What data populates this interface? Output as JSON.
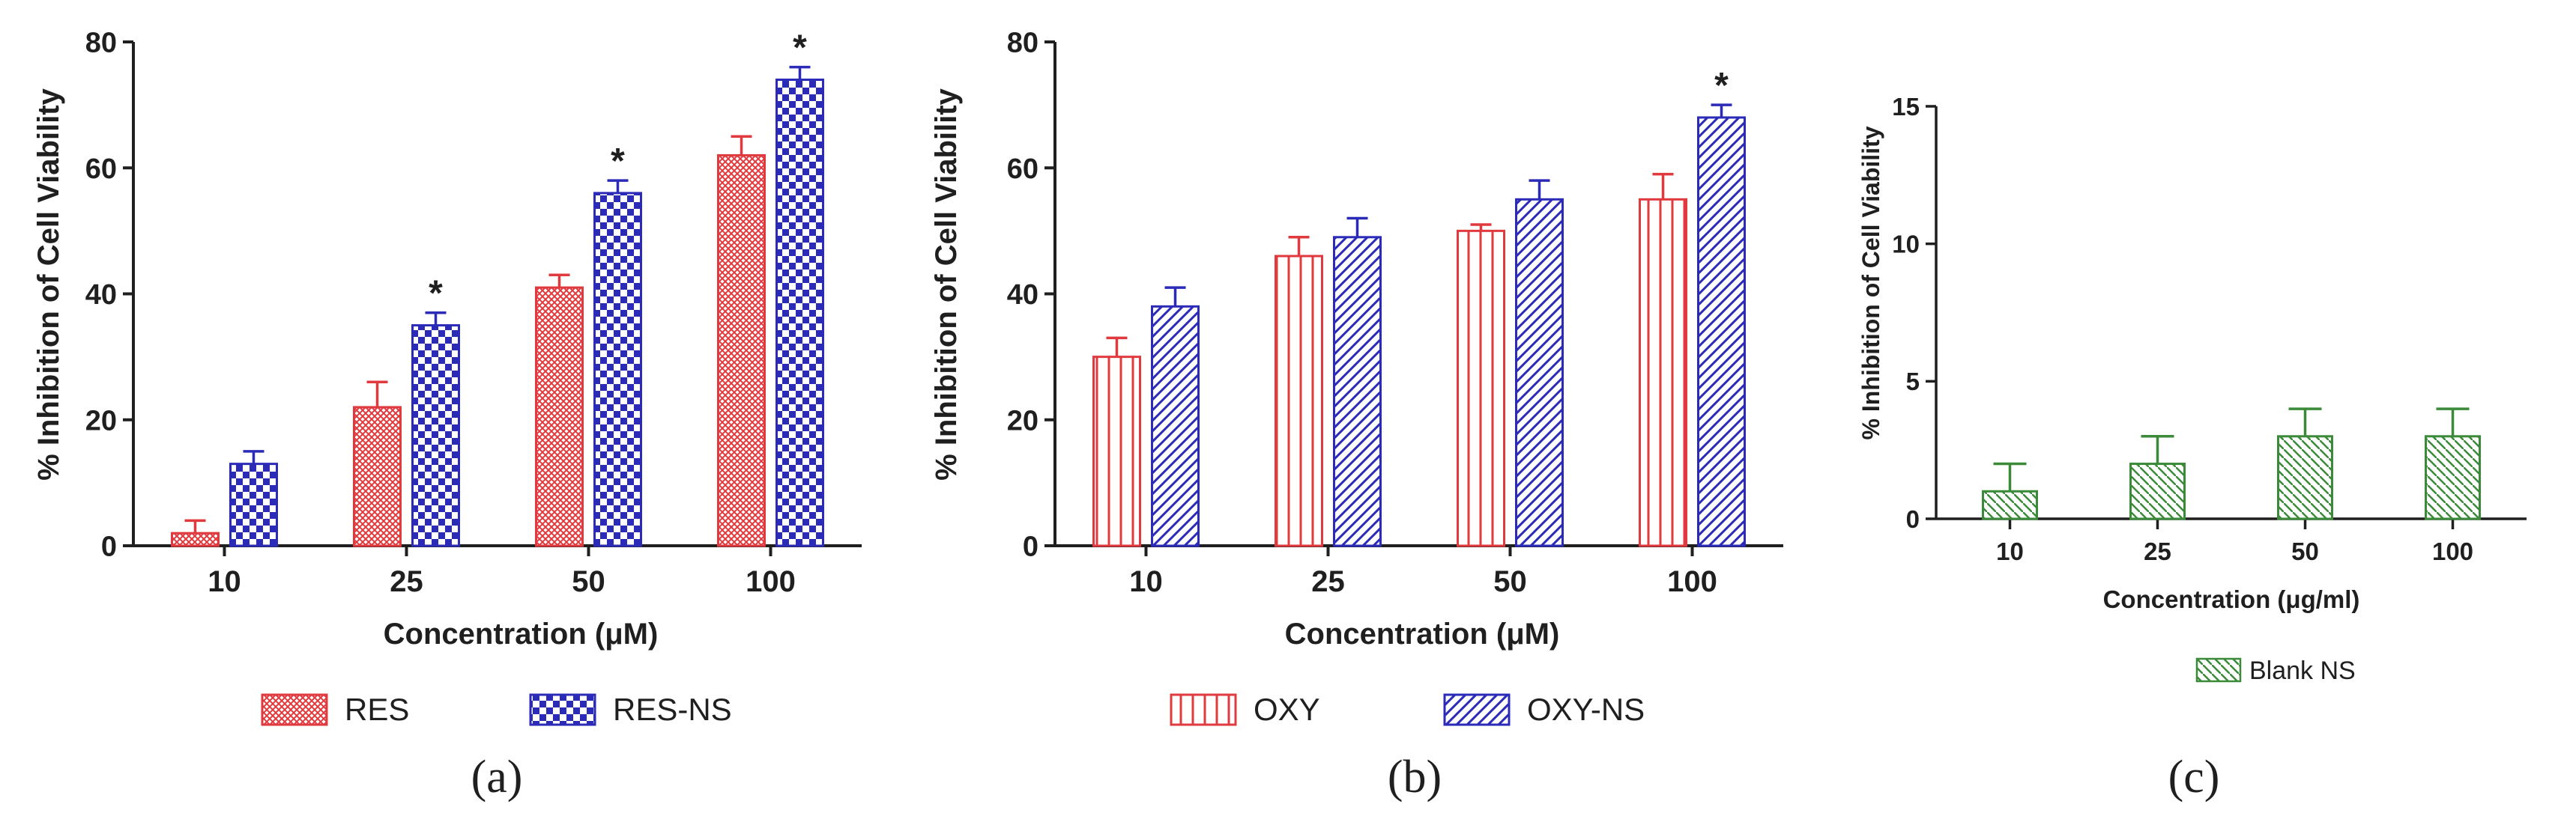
{
  "colors": {
    "red": "#e0393e",
    "blue": "#2b2bb8",
    "green": "#3a8a3a",
    "axis": "#1f1f1f"
  },
  "chart_data": [
    {
      "panel": "(a)",
      "type": "bar",
      "xlabel": "Concentration (μM)",
      "ylabel": "% Inhibition of Cell Viability",
      "ylim": [
        0,
        80
      ],
      "yticks": [
        "0",
        "20",
        "40",
        "60",
        "80"
      ],
      "categories": [
        "10",
        "25",
        "50",
        "100"
      ],
      "series": [
        {
          "name": "RES",
          "pattern": "crosshatch",
          "color": "red",
          "values": [
            2,
            22,
            41,
            62
          ],
          "errors": [
            2,
            4,
            2,
            3
          ]
        },
        {
          "name": "RES-NS",
          "pattern": "checker",
          "color": "blue",
          "values": [
            13,
            35,
            56,
            74
          ],
          "errors": [
            2,
            2,
            2,
            2
          ],
          "significance": [
            "",
            "*",
            "*",
            "*"
          ]
        }
      ],
      "legend_position": "bottom"
    },
    {
      "panel": "(b)",
      "type": "bar",
      "xlabel": "Concentration (μM)",
      "ylabel": "% Inhibition of Cell Viability",
      "ylim": [
        0,
        80
      ],
      "yticks": [
        "0",
        "20",
        "40",
        "60",
        "80"
      ],
      "categories": [
        "10",
        "25",
        "50",
        "100"
      ],
      "series": [
        {
          "name": "OXY",
          "pattern": "vertical",
          "color": "red",
          "values": [
            30,
            46,
            50,
            55
          ],
          "errors": [
            3,
            3,
            1,
            4
          ]
        },
        {
          "name": "OXY-NS",
          "pattern": "diagonal",
          "color": "blue",
          "values": [
            38,
            49,
            55,
            68
          ],
          "errors": [
            3,
            3,
            3,
            2
          ],
          "significance": [
            "",
            "",
            "",
            "*"
          ]
        }
      ],
      "legend_position": "bottom"
    },
    {
      "panel": "(c)",
      "type": "bar",
      "xlabel": "Concentration (μg/ml)",
      "ylabel": "% Inhibition of Cell Viability",
      "ylim": [
        0,
        15
      ],
      "yticks": [
        "0",
        "5",
        "10",
        "15"
      ],
      "categories": [
        "10",
        "25",
        "50",
        "100"
      ],
      "series": [
        {
          "name": "Blank NS",
          "pattern": "diagonal-back",
          "color": "green",
          "values": [
            1,
            2,
            3,
            3
          ],
          "errors": [
            1,
            1,
            1,
            1
          ]
        }
      ],
      "legend_position": "bottom"
    }
  ]
}
